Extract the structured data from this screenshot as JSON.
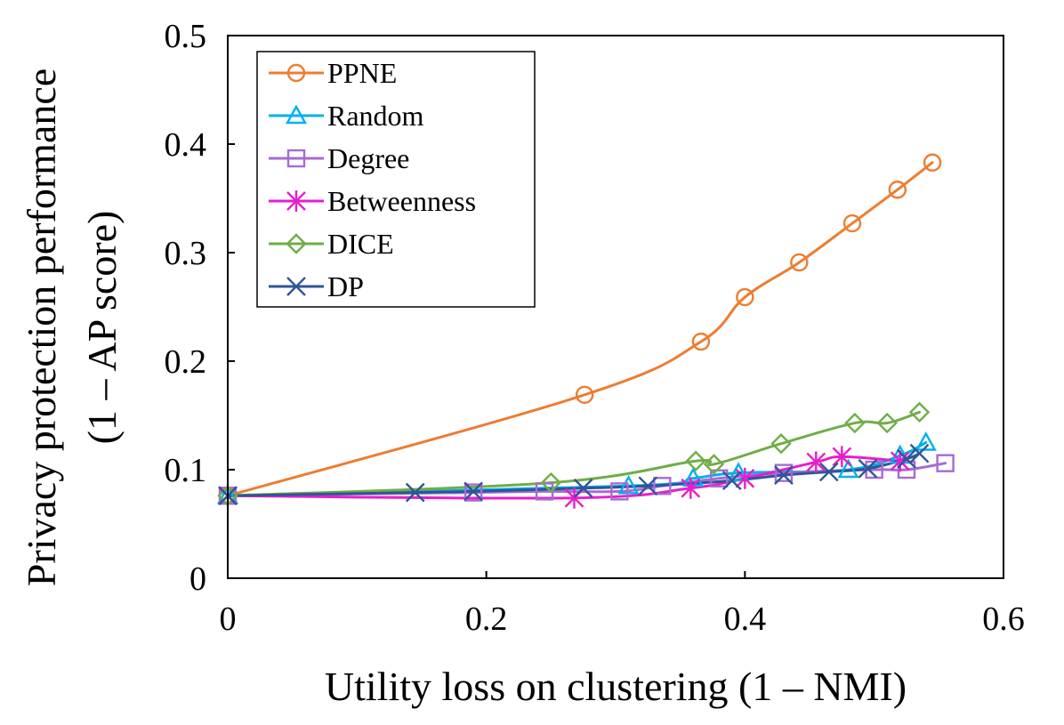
{
  "chart_data": {
    "type": "line",
    "title": "",
    "xlabel": "Utility loss on clustering (1 – NMI)",
    "ylabel_line1": "Privacy protection performance",
    "ylabel_line2": "(1 – AP score)",
    "xlim": [
      0,
      0.6
    ],
    "ylim": [
      0,
      0.5
    ],
    "xticks": [
      0,
      0.2,
      0.4,
      0.6
    ],
    "xtick_labels": [
      "0",
      "0.2",
      "0.4",
      "0.6"
    ],
    "yticks": [
      0,
      0.1,
      0.2,
      0.3,
      0.4,
      0.5
    ],
    "ytick_labels": [
      "0",
      "0.1",
      "0.2",
      "0.3",
      "0.4",
      "0.5"
    ],
    "grid": false,
    "legend_position": "top-left",
    "series": [
      {
        "name": "PPNE",
        "color": "#ED7D31",
        "marker": "circle",
        "x": [
          0.0,
          0.276,
          0.366,
          0.4,
          0.442,
          0.483,
          0.518,
          0.545
        ],
        "y": [
          0.076,
          0.169,
          0.218,
          0.259,
          0.291,
          0.327,
          0.358,
          0.383
        ]
      },
      {
        "name": "Random",
        "color": "#00B0F0",
        "marker": "triangle",
        "x": [
          0.0,
          0.31,
          0.36,
          0.395,
          0.48,
          0.52,
          0.54
        ],
        "y": [
          0.076,
          0.085,
          0.092,
          0.097,
          0.1,
          0.113,
          0.125
        ]
      },
      {
        "name": "Degree",
        "color": "#A66BD3",
        "marker": "square",
        "x": [
          0.0,
          0.19,
          0.245,
          0.303,
          0.336,
          0.38,
          0.43,
          0.5,
          0.525,
          0.555
        ],
        "y": [
          0.076,
          0.079,
          0.08,
          0.08,
          0.085,
          0.092,
          0.097,
          0.1,
          0.1,
          0.106
        ]
      },
      {
        "name": "Betweenness",
        "color": "#E61ECD",
        "marker": "asterisk",
        "x": [
          0.0,
          0.268,
          0.358,
          0.4,
          0.455,
          0.475,
          0.52
        ],
        "y": [
          0.076,
          0.074,
          0.083,
          0.092,
          0.107,
          0.112,
          0.108
        ]
      },
      {
        "name": "DICE",
        "color": "#70AD47",
        "marker": "diamond",
        "x": [
          0.0,
          0.25,
          0.362,
          0.376,
          0.428,
          0.485,
          0.51,
          0.535
        ],
        "y": [
          0.076,
          0.088,
          0.108,
          0.105,
          0.124,
          0.143,
          0.143,
          0.153
        ]
      },
      {
        "name": "DP",
        "color": "#2F5597",
        "marker": "x",
        "x": [
          0.0,
          0.145,
          0.19,
          0.275,
          0.325,
          0.39,
          0.43,
          0.465,
          0.495,
          0.525,
          0.535
        ],
        "y": [
          0.076,
          0.079,
          0.08,
          0.083,
          0.085,
          0.09,
          0.095,
          0.098,
          0.101,
          0.11,
          0.115
        ]
      }
    ]
  }
}
